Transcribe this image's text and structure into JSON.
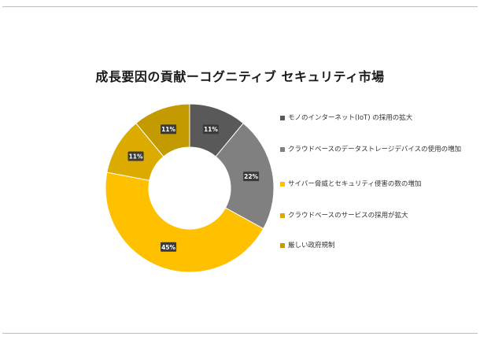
{
  "chart_data": {
    "type": "pie",
    "title": "成長要因の貢献ーコグニティブ セキュリティ市場",
    "series": [
      {
        "name": "モノのインターネット(IoT) の採用の拡大",
        "value": 11,
        "label": "11%",
        "color": "#595959"
      },
      {
        "name": "クラウドベースのデータストレージデバイスの使用の増加",
        "value": 22,
        "label": "22%",
        "color": "#808080"
      },
      {
        "name": "サイバー脅威とセキュリティ侵害の数の増加",
        "value": 45,
        "label": "45%",
        "color": "#ffc000"
      },
      {
        "name": "クラウドベースのサービスの採用が拡大",
        "value": 11,
        "label": "11%",
        "color": "#dcab00"
      },
      {
        "name": "厳しい政府規制",
        "value": 11,
        "label": "11%",
        "color": "#c39a00"
      }
    ],
    "legend_position": "right"
  }
}
